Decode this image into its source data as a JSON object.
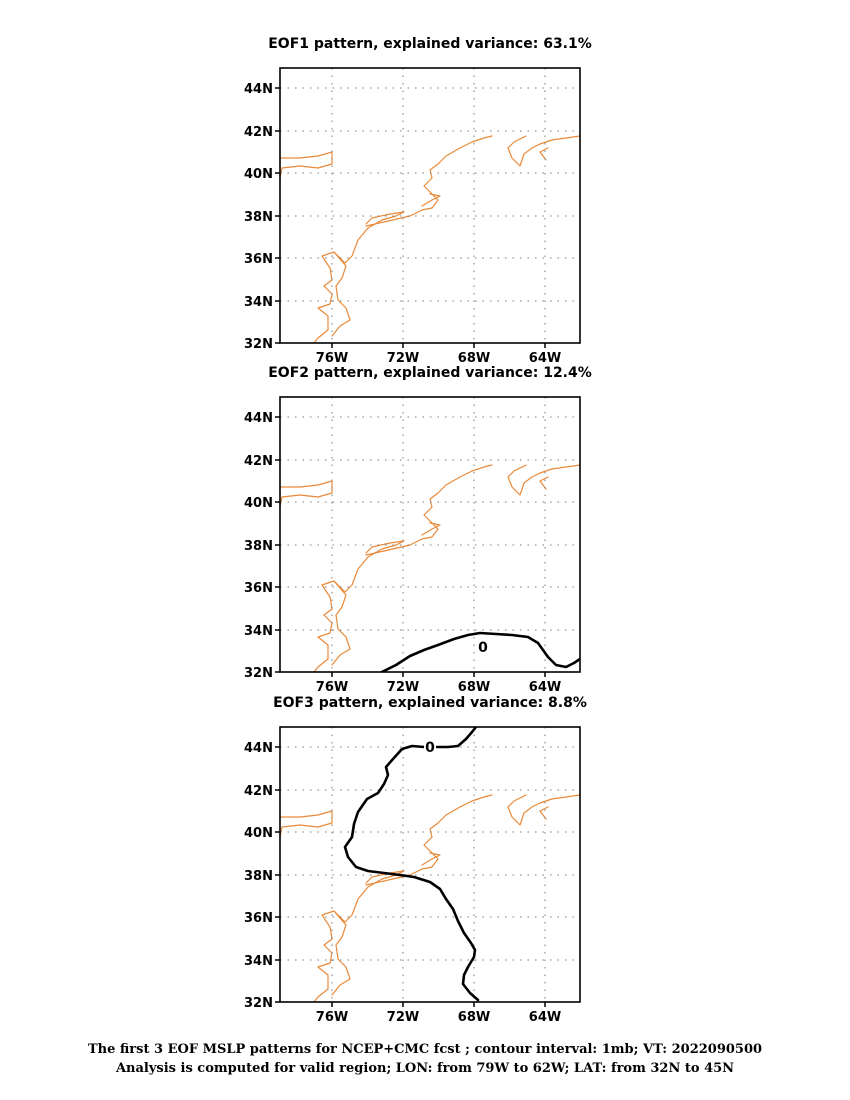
{
  "panels": [
    {
      "title": "EOF1 pattern, explained variance: 63.1%",
      "contour_label": null
    },
    {
      "title": "EOF2 pattern, explained variance: 12.4%",
      "contour_label": "0"
    },
    {
      "title": "EOF3 pattern, explained variance: 8.8%",
      "contour_label": "0"
    }
  ],
  "axes": {
    "lat_ticks": [
      "44N",
      "42N",
      "40N",
      "38N",
      "36N",
      "34N",
      "32N"
    ],
    "lon_ticks": [
      "76W",
      "72W",
      "68W",
      "64W"
    ],
    "lon_range": "79W to 62W",
    "lat_range": "32N to 45N",
    "gridlines": true
  },
  "colors": {
    "coastline": "#e98a3a",
    "contour": "#000000",
    "gridline": "#7a7a7a"
  },
  "caption": {
    "line1": "The first 3 EOF MSLP patterns for NCEP+CMC fcst ; contour interval: 1mb; VT: 2022090500",
    "line2": "Analysis is computed for valid region; LON: from 79W to 62W; LAT: from 32N to 45N"
  }
}
